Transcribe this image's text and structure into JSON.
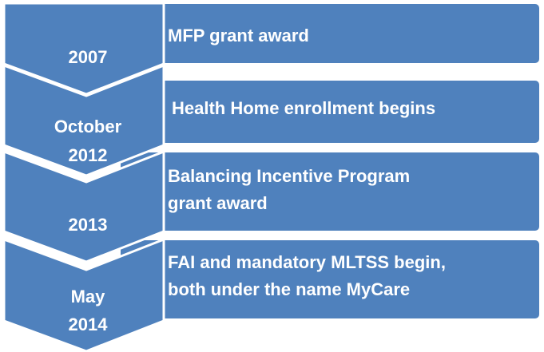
{
  "rows": [
    {
      "date": [
        "2007"
      ],
      "event": [
        "MFP grant award"
      ]
    },
    {
      "date": [
        "October",
        "2012"
      ],
      "event": [
        "Health Home enrollment begins"
      ]
    },
    {
      "date": [
        "2013"
      ],
      "event": [
        "Balancing Incentive Program",
        "grant award"
      ]
    },
    {
      "date": [
        "May",
        "2014"
      ],
      "event": [
        "FAI and mandatory MLTSS begin,",
        "both under the name MyCare"
      ]
    }
  ]
}
